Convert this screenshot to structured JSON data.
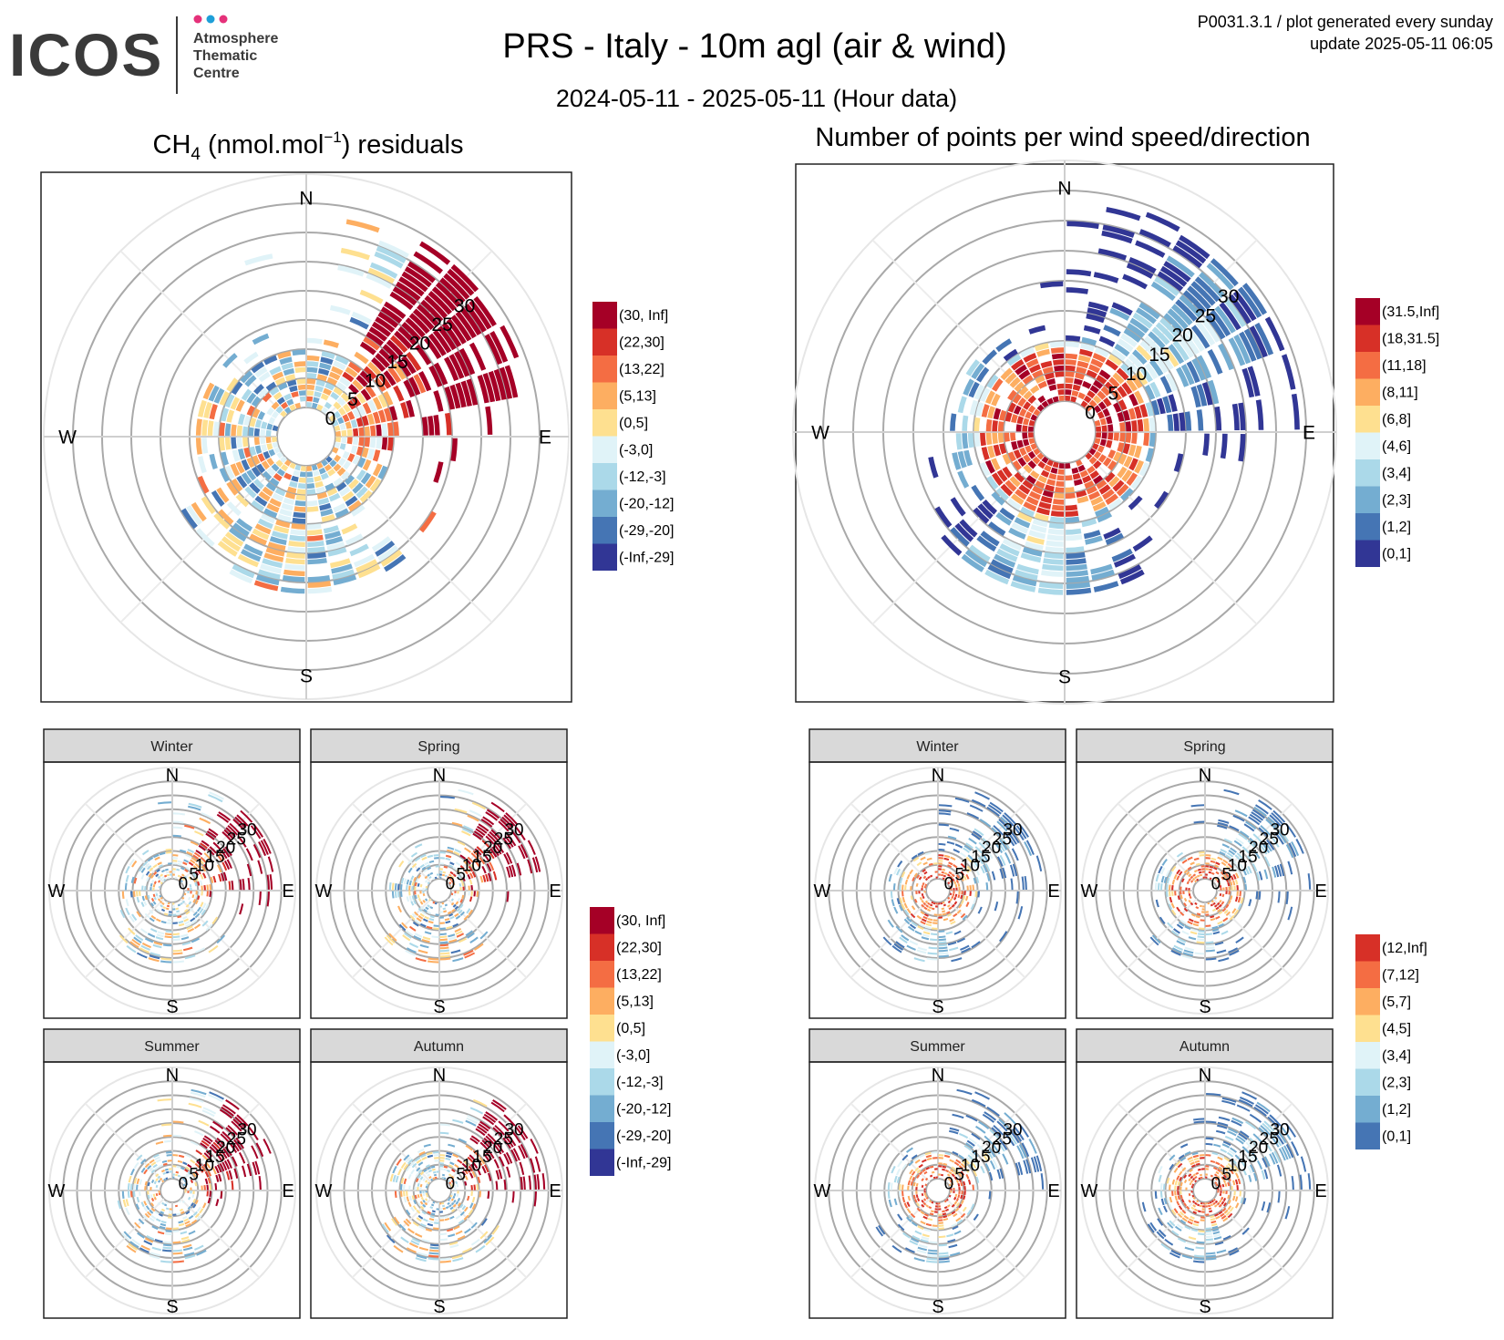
{
  "header": {
    "logo_text": "ICOS",
    "logo_sub": [
      "Atmosphere",
      "Thematic",
      "Centre"
    ],
    "title": "PRS - Italy - 10m agl (air & wind)",
    "subtitle": "2024-05-11 - 2025-05-11 (Hour data)",
    "info_line1": "P0031.3.1 / plot generated every sunday",
    "info_line2": "update  2025-05-11 06:05"
  },
  "colors": {
    "residual_scale": [
      "#a50026",
      "#d73027",
      "#f46d43",
      "#fdae61",
      "#fee090",
      "#e0f3f8",
      "#abd9e9",
      "#74add1",
      "#4575b4",
      "#313695"
    ],
    "count_scale": [
      "#a50026",
      "#d73027",
      "#f46d43",
      "#fdae61",
      "#fee090",
      "#e0f3f8",
      "#abd9e9",
      "#74add1",
      "#4575b4",
      "#313695"
    ],
    "count_season_scale": [
      "#d73027",
      "#f46d43",
      "#fdae61",
      "#fee090",
      "#e0f3f8",
      "#abd9e9",
      "#74add1",
      "#4575b4"
    ],
    "ring": "#a9a9a9",
    "spoke": "#dddddd",
    "strip": "#d9d9d9"
  },
  "compass": {
    "n": "N",
    "e": "E",
    "s": "S",
    "w": "W"
  },
  "residuals_panel": {
    "title_prefix": "CH",
    "title_sub": "4",
    "title_mid": " (nmol.mol",
    "title_sup": "−1",
    "title_suffix": ") residuals"
  },
  "counts_panel": {
    "title": "Number of points per wind speed/direction"
  },
  "seasons": [
    "Winter",
    "Spring",
    "Summer",
    "Autumn"
  ],
  "chart_data": [
    {
      "type": "heatmap",
      "projection": "polar",
      "name": "residuals",
      "r_ticks": [
        0,
        5,
        10,
        15,
        20,
        25,
        30
      ],
      "legend": [
        "(30, Inf]",
        "(22,30]",
        "(13,22]",
        "(5,13]",
        "(0,5]",
        "(-3,0]",
        "(-12,-3]",
        "(-20,-12]",
        "(-29,-20]",
        "(-Inf,-29]"
      ],
      "value": "binned CH4 residual by wind direction and speed"
    },
    {
      "type": "heatmap",
      "projection": "polar",
      "name": "counts",
      "r_ticks": [
        0,
        5,
        10,
        15,
        20,
        25,
        30
      ],
      "legend": [
        "(31.5,Inf]",
        "(18,31.5]",
        "(11,18]",
        "(8,11]",
        "(6,8]",
        "(4,6]",
        "(3,4]",
        "(2,3]",
        "(1,2]",
        "(0,1]"
      ],
      "value": "number of hourly points per wind speed/direction bin"
    },
    {
      "type": "heatmap",
      "projection": "polar",
      "name": "residuals-seasonal",
      "facets": [
        "Winter",
        "Spring",
        "Summer",
        "Autumn"
      ],
      "r_ticks": [
        0,
        5,
        10,
        15,
        20,
        25,
        30
      ],
      "legend": [
        "(30, Inf]",
        "(22,30]",
        "(13,22]",
        "(5,13]",
        "(0,5]",
        "(-3,0]",
        "(-12,-3]",
        "(-20,-12]",
        "(-29,-20]",
        "(-Inf,-29]"
      ]
    },
    {
      "type": "heatmap",
      "projection": "polar",
      "name": "counts-seasonal",
      "facets": [
        "Winter",
        "Spring",
        "Summer",
        "Autumn"
      ],
      "r_ticks": [
        0,
        5,
        10,
        15,
        20,
        25,
        30
      ],
      "legend": [
        "(12,Inf]",
        "(7,12]",
        "(5,7]",
        "(4,5]",
        "(3,4]",
        "(2,3]",
        "(1,2]",
        "(0,1]"
      ]
    }
  ]
}
